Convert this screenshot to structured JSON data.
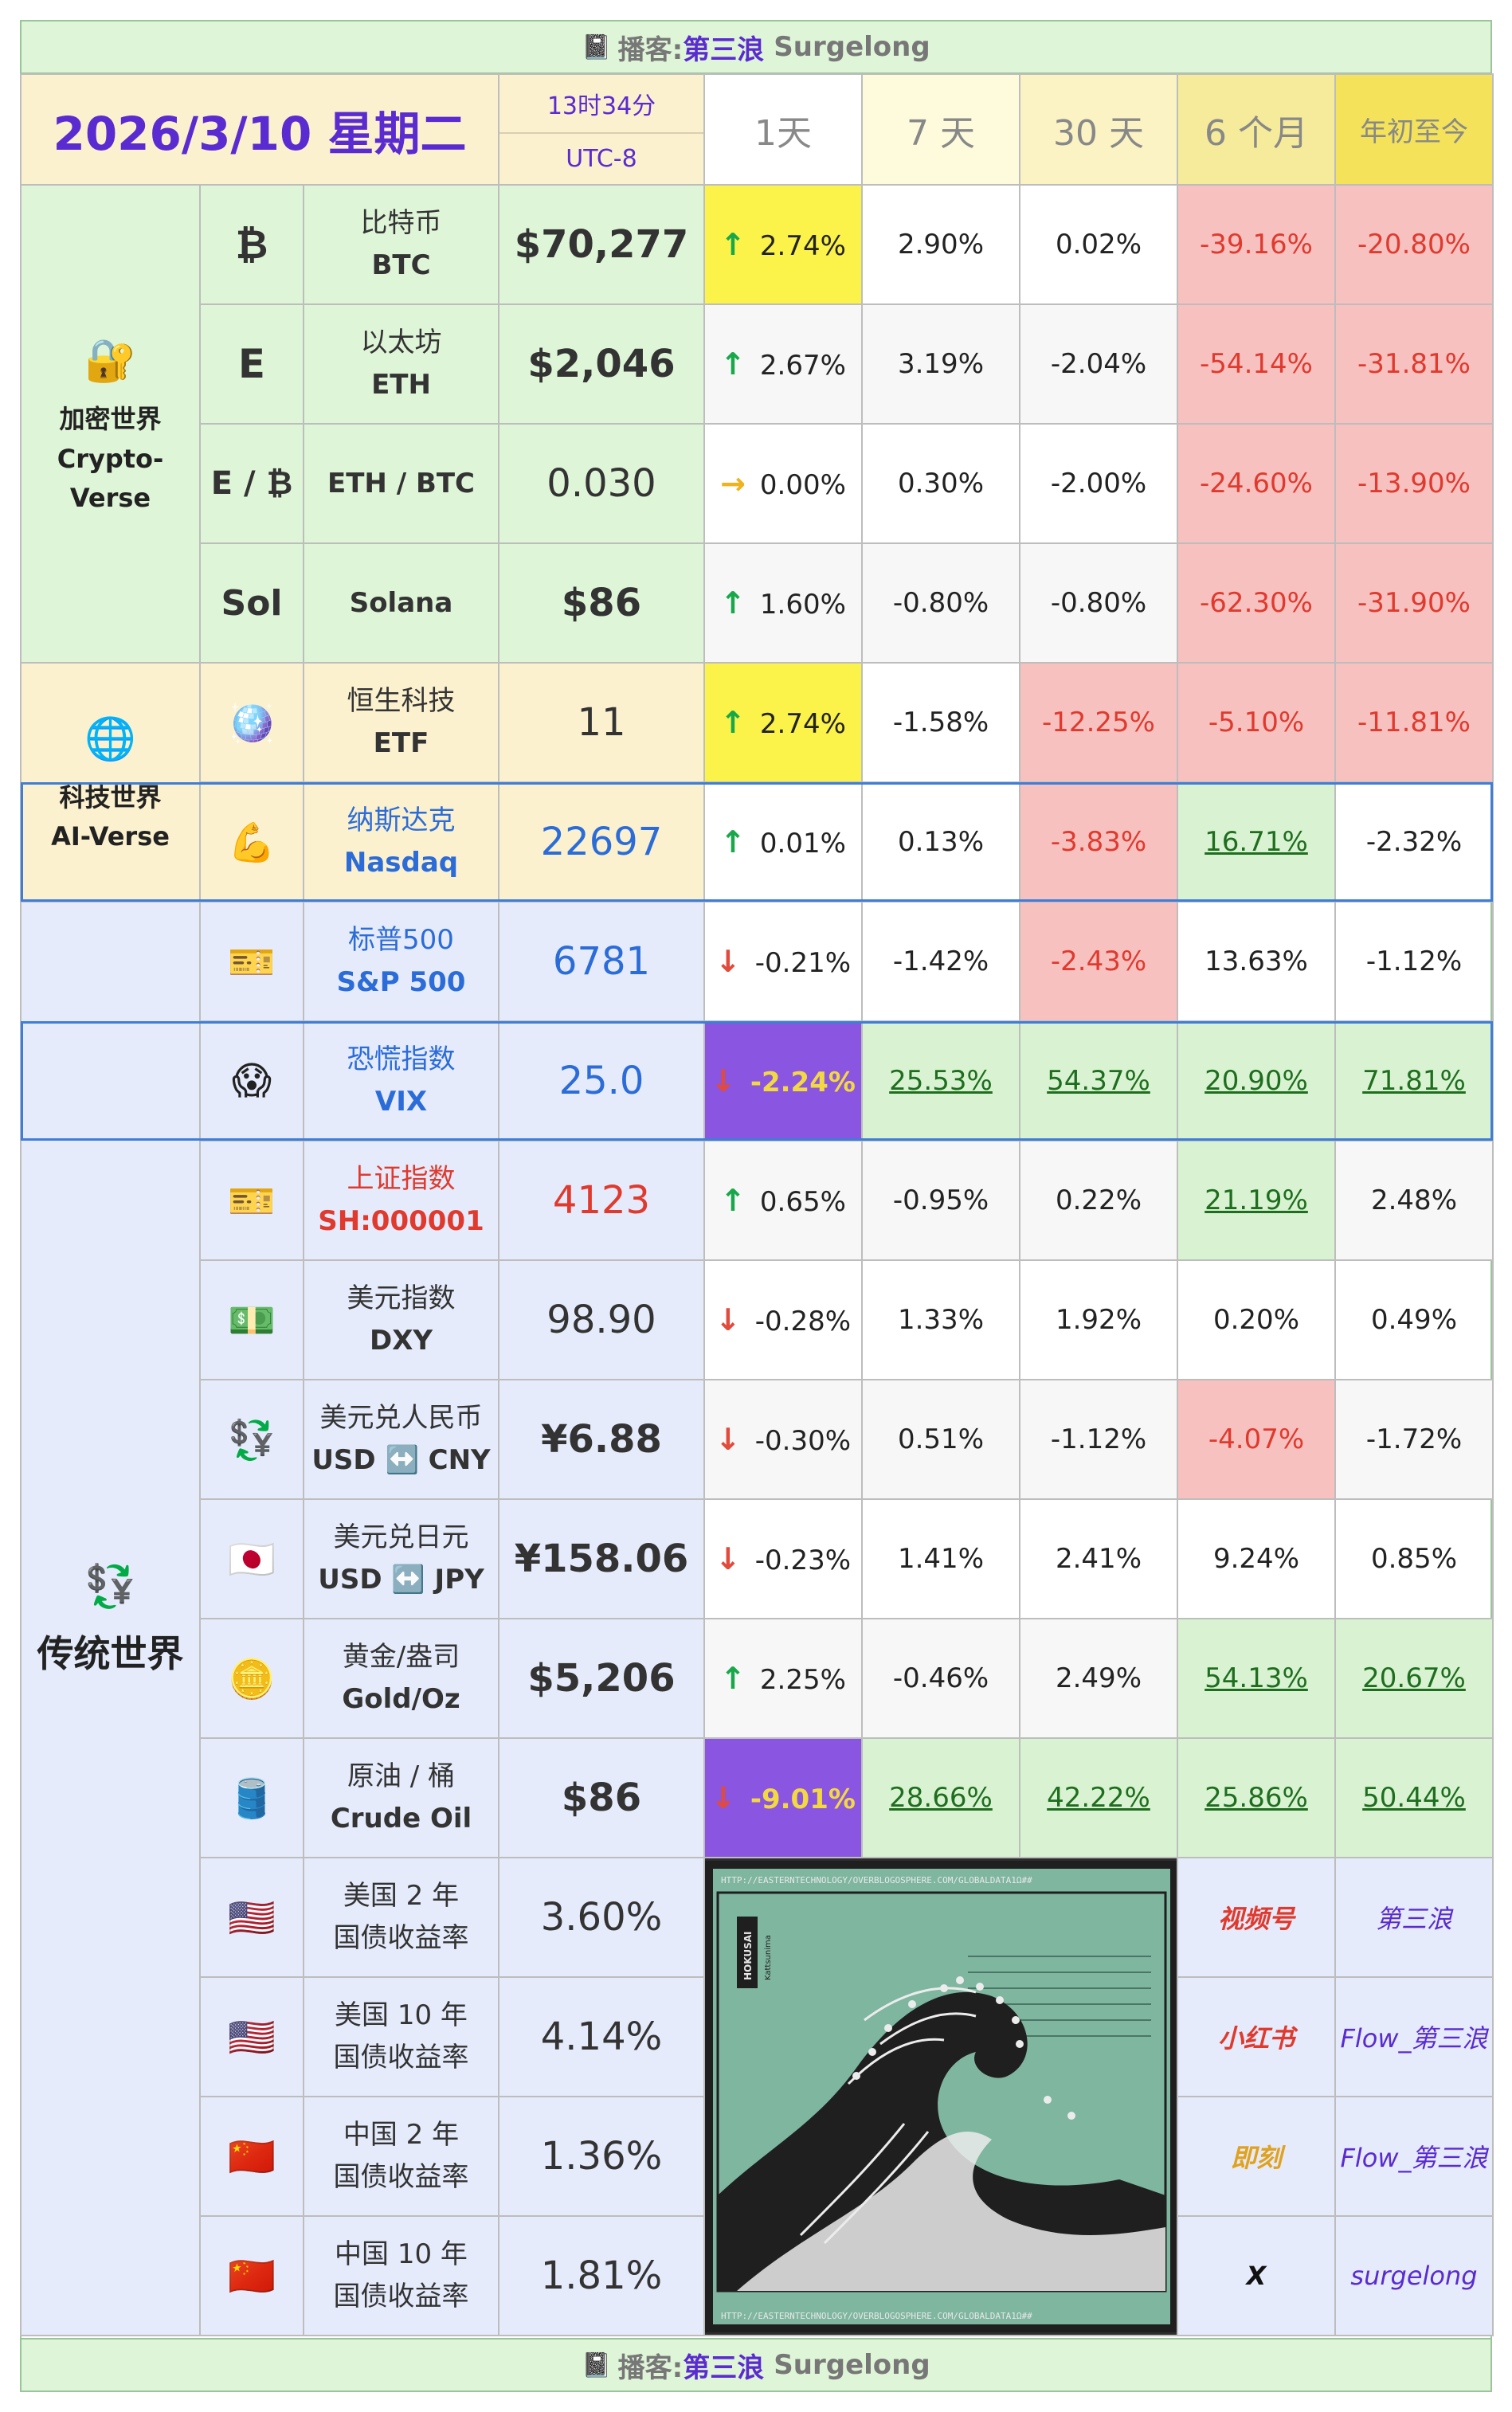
{
  "banner": {
    "icon": "notepad-icon",
    "prefix": "播客:",
    "name": "第三浪",
    "sub": "Surgelong"
  },
  "header": {
    "date": "2026/3/10 星期二",
    "time": "13时34分",
    "timezone": "UTC-8",
    "periods": [
      "1天",
      "7 天",
      "30 天",
      "6 个月",
      "年初至今"
    ]
  },
  "categories": {
    "crypto": {
      "icon": "lock-icon",
      "cn": "加密世界",
      "en": "Crypto-Verse"
    },
    "ai": {
      "icon": "globe-icon",
      "cn": "科技世界",
      "en": "AI-Verse"
    },
    "trad": {
      "icon": "currency-exchange-icon",
      "cn": "传统世界"
    }
  },
  "assets": [
    {
      "id": "btc",
      "symbol": "₿",
      "cn": "比特币",
      "en": "BTC",
      "price": "$70,277",
      "dir": "up",
      "p": [
        "2.74%",
        "2.90%",
        "0.02%",
        "-39.16%",
        "-20.80%"
      ]
    },
    {
      "id": "eth",
      "symbol": "E",
      "cn": "以太坊",
      "en": "ETH",
      "price": "$2,046",
      "dir": "up",
      "p": [
        "2.67%",
        "3.19%",
        "-2.04%",
        "-54.14%",
        "-31.81%"
      ]
    },
    {
      "id": "ethbtc",
      "symbol": "E / ₿",
      "cn": "",
      "en": "ETH / BTC",
      "price": "0.030",
      "dir": "flat",
      "p": [
        "0.00%",
        "0.30%",
        "-2.00%",
        "-24.60%",
        "-13.90%"
      ]
    },
    {
      "id": "sol",
      "symbol": "Sol",
      "cn": "",
      "en": "Solana",
      "price": "$86",
      "dir": "up",
      "p": [
        "1.60%",
        "-0.80%",
        "-0.80%",
        "-62.30%",
        "-31.90%"
      ]
    },
    {
      "id": "hstech",
      "symbol": "disco-ball-icon",
      "cn": "恒生科技",
      "en": "ETF",
      "price": "11",
      "dir": "up",
      "p": [
        "2.74%",
        "-1.58%",
        "-12.25%",
        "-5.10%",
        "-11.81%"
      ]
    },
    {
      "id": "nasdaq",
      "symbol": "flexed-biceps-icon",
      "cn": "纳斯达克",
      "en": "Nasdaq",
      "price": "22697",
      "dir": "up",
      "p": [
        "0.01%",
        "0.13%",
        "-3.83%",
        "16.71%",
        "-2.32%"
      ]
    },
    {
      "id": "sp500",
      "symbol": "ticket-icon",
      "cn": "标普500",
      "en": "S&P 500",
      "price": "6781",
      "dir": "down",
      "p": [
        "-0.21%",
        "-1.42%",
        "-2.43%",
        "13.63%",
        "-1.12%"
      ]
    },
    {
      "id": "vix",
      "symbol": "scream-face-icon",
      "cn": "恐慌指数",
      "en": "VIX",
      "price": "25.0",
      "dir": "down",
      "p": [
        "-2.24%",
        "25.53%",
        "54.37%",
        "20.90%",
        "71.81%"
      ]
    },
    {
      "id": "sh",
      "symbol": "ticket-icon",
      "cn": "上证指数",
      "en": "SH:000001",
      "price": "4123",
      "dir": "up",
      "p": [
        "0.65%",
        "-0.95%",
        "0.22%",
        "21.19%",
        "2.48%"
      ]
    },
    {
      "id": "dxy",
      "symbol": "dollar-banknote-icon",
      "cn": "美元指数",
      "en": "DXY",
      "price": "98.90",
      "dir": "down",
      "p": [
        "-0.28%",
        "1.33%",
        "1.92%",
        "0.20%",
        "0.49%"
      ]
    },
    {
      "id": "usdcny",
      "symbol": "currency-exchange-icon",
      "cn": "美元兑人民币",
      "en": "USD ↔️ CNY",
      "price": "¥6.88",
      "dir": "down",
      "p": [
        "-0.30%",
        "0.51%",
        "-1.12%",
        "-4.07%",
        "-1.72%"
      ]
    },
    {
      "id": "usdjpy",
      "symbol": "japan-flag-icon",
      "cn": "美元兑日元",
      "en": "USD ↔️ JPY",
      "price": "¥158.06",
      "dir": "down",
      "p": [
        "-0.23%",
        "1.41%",
        "2.41%",
        "9.24%",
        "0.85%"
      ]
    },
    {
      "id": "gold",
      "symbol": "gold-bar-icon",
      "cn": "黄金/盎司",
      "en": "Gold/Oz",
      "price": "$5,206",
      "dir": "up",
      "p": [
        "2.25%",
        "-0.46%",
        "2.49%",
        "54.13%",
        "20.67%"
      ]
    },
    {
      "id": "oil",
      "symbol": "oil-drum-icon",
      "cn": "原油 / 桶",
      "en": "Crude Oil",
      "price": "$86",
      "dir": "down",
      "p": [
        "-9.01%",
        "28.66%",
        "42.22%",
        "25.86%",
        "50.44%"
      ]
    }
  ],
  "bonds": [
    {
      "icon": "us-flag-icon",
      "l1": "美国 2 年",
      "l2": "国债收益率",
      "value": "3.60%"
    },
    {
      "icon": "us-flag-icon",
      "l1": "美国 10 年",
      "l2": "国债收益率",
      "value": "4.14%"
    },
    {
      "icon": "china-flag-icon",
      "l1": "中国 2 年",
      "l2": "国债收益率",
      "value": "1.36%"
    },
    {
      "icon": "china-flag-icon",
      "l1": "中国 10 年",
      "l2": "国债收益率",
      "value": "1.81%"
    }
  ],
  "wave": {
    "url": "HTTP://EASTERNTECHNOLOGY/OVERBLOGOSPHERE.COM/GLOBALDATA1Ω##",
    "label": "HOKUSAI",
    "sub": "Kattsunima"
  },
  "social": [
    {
      "platform": "视频号",
      "handle": "第三浪",
      "color": "#e03a2e"
    },
    {
      "platform": "小红书",
      "handle": "Flow_第三浪",
      "color": "#e03a2e"
    },
    {
      "platform": "即刻",
      "handle": "Flow_第三浪",
      "color": "#e0a21e"
    },
    {
      "platform": "X",
      "handle": "surgelong",
      "color": "#111111"
    }
  ],
  "colors": {
    "accent": "#5a2bd0",
    "up": "#18a84a",
    "down": "#e24a3c",
    "flat": "#f0b31e"
  }
}
